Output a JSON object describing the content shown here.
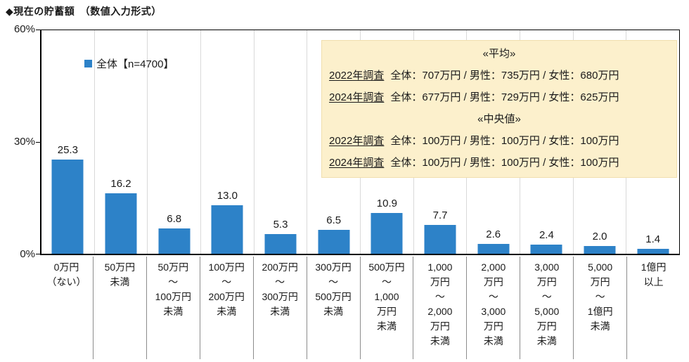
{
  "title": "◆現在の貯蓄額　（数値入力形式）",
  "legend": {
    "label": "全体【n=4700】",
    "marker_color": "#2D82C8"
  },
  "y_axis": {
    "ticks": [
      "60%",
      "30%",
      "0%"
    ]
  },
  "chart_data": {
    "type": "bar",
    "title": "現在の貯蓄額（数値入力形式）",
    "legend": "全体【n=4700】",
    "xlabel": "",
    "ylabel": "%",
    "ylim": [
      0,
      60
    ],
    "y_tick_values": [
      0,
      30,
      60
    ],
    "legend_position": "top-left-inside",
    "grid": "vertical category separators only",
    "bar_color": "#2D82C8",
    "categories": [
      "0万円（ない）",
      "50万円未満",
      "50万円～100万円未満",
      "100万円～200万円未満",
      "200万円～300万円未満",
      "300万円～500万円未満",
      "500万円～1,000万円未満",
      "1,000万円～2,000万円未満",
      "2,000万円～3,000万円未満",
      "3,000万円～5,000万円未満",
      "5,000万円～1億円未満",
      "1億円以上"
    ],
    "category_label_lines": [
      [
        "0万円",
        "（ない）"
      ],
      [
        "50万円",
        "未満"
      ],
      [
        "50万円",
        "～",
        "100万円",
        "未満"
      ],
      [
        "100万円",
        "～",
        "200万円",
        "未満"
      ],
      [
        "200万円",
        "～",
        "300万円",
        "未満"
      ],
      [
        "300万円",
        "～",
        "500万円",
        "未満"
      ],
      [
        "500万円",
        "～",
        "1,000",
        "万円",
        "未満"
      ],
      [
        "1,000",
        "万円",
        "～",
        "2,000",
        "万円",
        "未満"
      ],
      [
        "2,000",
        "万円",
        "～",
        "3,000",
        "万円",
        "未満"
      ],
      [
        "3,000",
        "万円",
        "～",
        "5,000",
        "万円",
        "未満"
      ],
      [
        "5,000",
        "万円",
        "～",
        "1億円",
        "未満"
      ],
      [
        "1億円",
        "以上"
      ]
    ],
    "values": [
      25.3,
      16.2,
      6.8,
      13.0,
      5.3,
      6.5,
      10.9,
      7.7,
      2.6,
      2.4,
      2.0,
      1.4
    ]
  },
  "info_box": {
    "bg_color": "#FCF0CC",
    "sections": [
      {
        "heading": "«平均»",
        "rows": [
          {
            "year": "2022年調査",
            "text": "全体：707万円 / 男性：735万円 / 女性：680万円"
          },
          {
            "year": "2024年調査",
            "text": "全体：677万円 / 男性：729万円 / 女性：625万円"
          }
        ]
      },
      {
        "heading": "«中央値»",
        "rows": [
          {
            "year": "2022年調査",
            "text": "全体：100万円 / 男性：100万円 / 女性：100万円"
          },
          {
            "year": "2024年調査",
            "text": "全体：100万円 / 男性：100万円 / 女性：100万円"
          }
        ]
      }
    ]
  }
}
